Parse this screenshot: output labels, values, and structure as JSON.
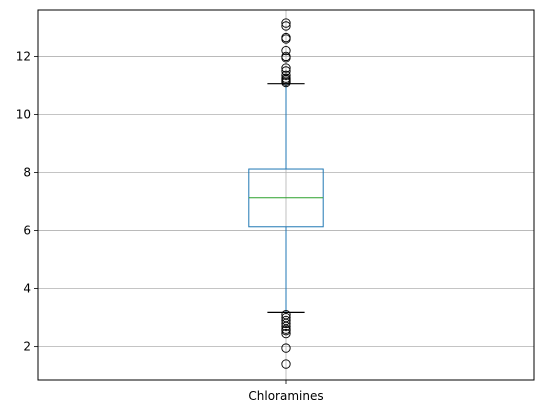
{
  "chart_data": {
    "type": "box",
    "categories": [
      "Chloramines"
    ],
    "xlabel": "",
    "ylabel": "",
    "title": "",
    "ylim": [
      0.85,
      13.6
    ],
    "yticks": [
      2,
      4,
      6,
      8,
      10,
      12
    ],
    "grid": true,
    "boxes": [
      {
        "name": "Chloramines",
        "q1": 6.13,
        "median": 7.13,
        "q3": 8.12,
        "whisker_low": 3.18,
        "whisker_high": 11.06,
        "outliers_high": [
          11.1,
          11.15,
          11.2,
          11.25,
          11.35,
          11.5,
          11.6,
          11.95,
          12.0,
          12.2,
          12.6,
          12.65,
          13.05,
          13.15
        ],
        "outliers_low": [
          3.1,
          3.0,
          2.9,
          2.8,
          2.7,
          2.6,
          2.55,
          2.45,
          1.95,
          1.4
        ]
      }
    ],
    "colors": {
      "box": "#1f77b4",
      "median": "#2ca02c",
      "whisker_cap": "#000000",
      "grid": "#b0b0b0"
    }
  }
}
